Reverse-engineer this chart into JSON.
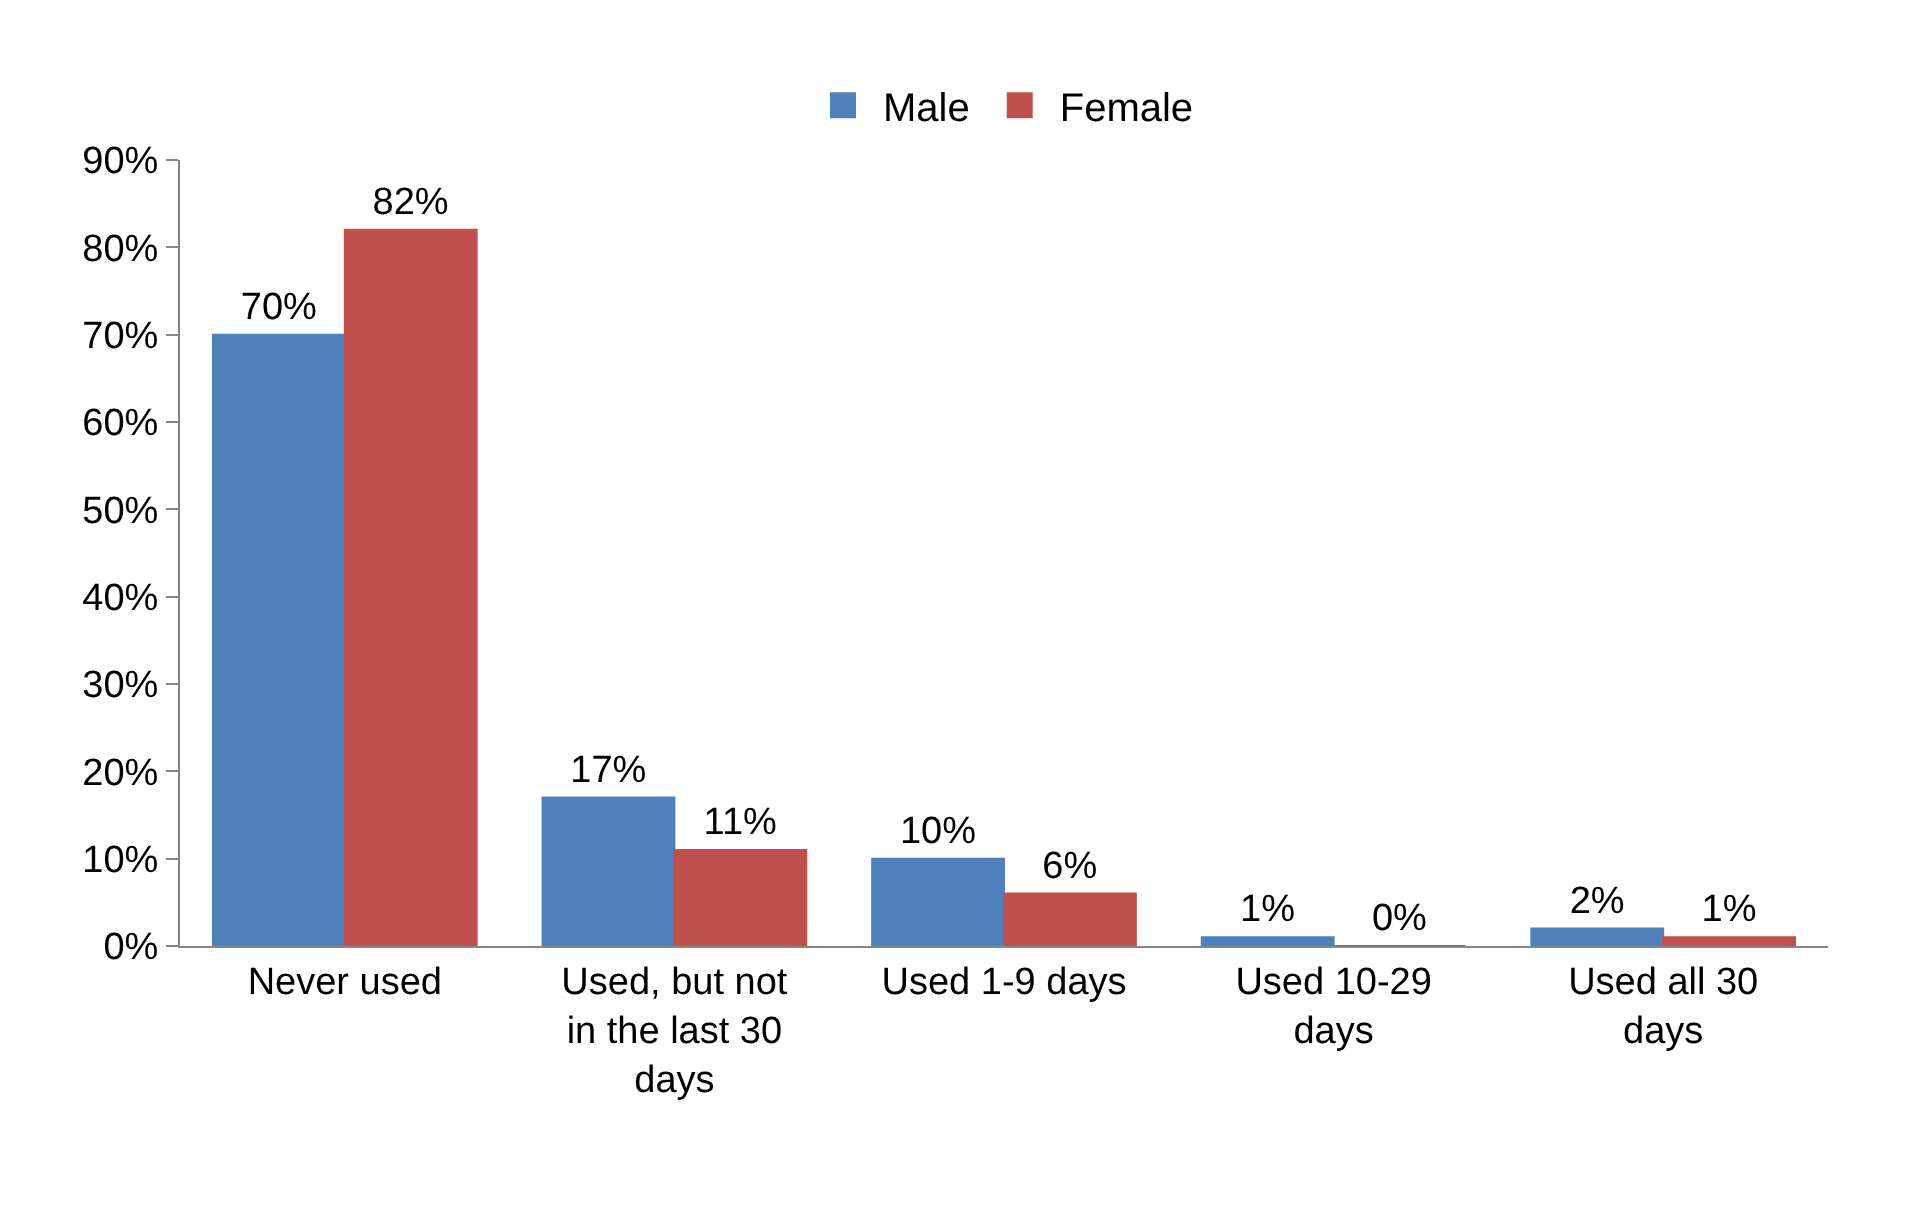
{
  "chart_data": {
    "type": "bar",
    "categories": [
      "Never used",
      "Used, but not in the last 30 days",
      "Used 1-9 days",
      "Used 10-29 days",
      "Used all 30 days"
    ],
    "series": [
      {
        "name": "Male",
        "color": "#4f81bd",
        "values": [
          70,
          17,
          10,
          1,
          2
        ],
        "value_labels": [
          "70%",
          "17%",
          "10%",
          "1%",
          "2%"
        ]
      },
      {
        "name": "Female",
        "color": "#c0504d",
        "values": [
          82,
          11,
          6,
          0,
          1
        ],
        "value_labels": [
          "82%",
          "11%",
          "6%",
          "0%",
          "1%"
        ]
      }
    ],
    "ylim": [
      0,
      90
    ],
    "yticks": [
      {
        "value": 0,
        "label": "0%"
      },
      {
        "value": 10,
        "label": "10%"
      },
      {
        "value": 20,
        "label": "20%"
      },
      {
        "value": 30,
        "label": "30%"
      },
      {
        "value": 40,
        "label": "40%"
      },
      {
        "value": 50,
        "label": "50%"
      },
      {
        "value": 60,
        "label": "60%"
      },
      {
        "value": 70,
        "label": "70%"
      },
      {
        "value": 80,
        "label": "80%"
      },
      {
        "value": 90,
        "label": "90%"
      }
    ],
    "grid": false,
    "legend": "top"
  }
}
